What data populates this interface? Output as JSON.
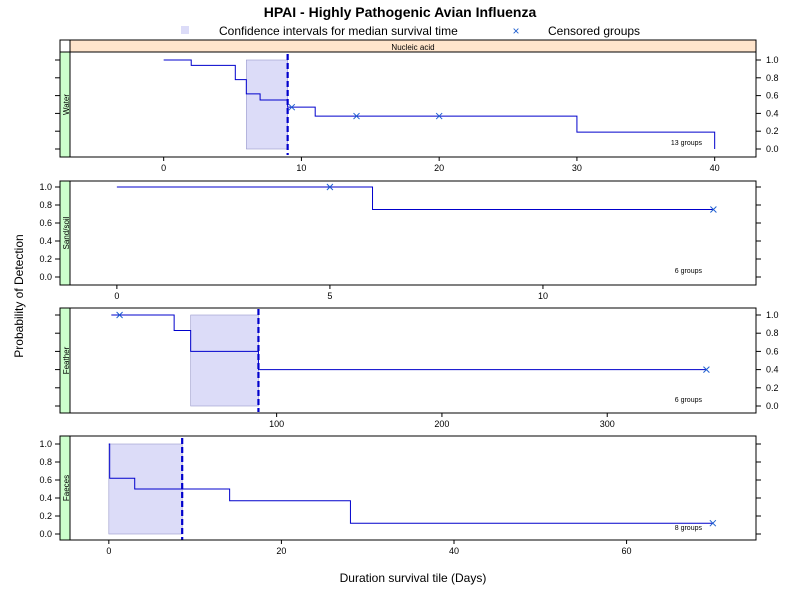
{
  "title": "HPAI - Highly Pathogenic Avian Influenza",
  "colors": {
    "line": "#0000cc",
    "ci_fill": "#dcdcf8",
    "median_line": "#0000cc",
    "censor": "#2060d0",
    "top_strip": "#ffe5cc",
    "left_strip": "#ccffcc"
  },
  "chart_data": {
    "type": "line",
    "title": "HPAI - Highly Pathogenic Avian Influenza",
    "xlabel": "Duration survival tile (Days)",
    "ylabel": "Probability of Detection",
    "top_strip": "Nucleic acid",
    "legend": {
      "position": "top",
      "entries": [
        {
          "label": "Confidence intervals for median survival time",
          "symbol": "square"
        },
        {
          "label": "Censored groups",
          "symbol": "x"
        }
      ]
    },
    "panels": [
      {
        "name": "Water",
        "groups_label": "13 groups",
        "xlim": [
          -6.8,
          43
        ],
        "ylim": [
          0,
          1
        ],
        "x_ticks": [
          0,
          10,
          20,
          30,
          40
        ],
        "y_ticks": [
          0.0,
          0.2,
          0.4,
          0.6,
          0.8,
          1.0
        ],
        "y_side": "right",
        "step": [
          [
            0,
            1.0
          ],
          [
            2,
            0.94
          ],
          [
            5.2,
            0.78
          ],
          [
            6,
            0.62
          ],
          [
            7,
            0.55
          ],
          [
            9,
            0.47
          ],
          [
            11,
            0.37
          ],
          [
            30,
            0.19
          ],
          [
            40,
            0.0
          ]
        ],
        "censored": [
          [
            9.3,
            0.47
          ],
          [
            14,
            0.37
          ],
          [
            20,
            0.37
          ]
        ],
        "ci": [
          6,
          9
        ],
        "median": 9
      },
      {
        "name": "Sand/soil",
        "groups_label": "6 groups",
        "xlim": [
          -1.1,
          15
        ],
        "ylim": [
          0,
          1
        ],
        "x_ticks": [
          0,
          5,
          10
        ],
        "y_ticks": [
          0.0,
          0.2,
          0.4,
          0.6,
          0.8,
          1.0
        ],
        "y_side": "left",
        "step": [
          [
            0,
            1.0
          ],
          [
            6,
            0.75
          ],
          [
            14,
            0.75
          ]
        ],
        "censored": [
          [
            5,
            1.0
          ],
          [
            14,
            0.75
          ]
        ],
        "ci": null,
        "median": null
      },
      {
        "name": "Feather",
        "groups_label": "6 groups",
        "xlim": [
          -25,
          390
        ],
        "ylim": [
          0,
          1
        ],
        "x_ticks": [
          100,
          200,
          300
        ],
        "y_ticks": [
          0.0,
          0.2,
          0.4,
          0.6,
          0.8,
          1.0
        ],
        "y_side": "right",
        "step": [
          [
            0,
            1.0
          ],
          [
            38,
            0.83
          ],
          [
            48,
            0.6
          ],
          [
            89,
            0.4
          ],
          [
            360,
            0.4
          ]
        ],
        "censored": [
          [
            5,
            1.0
          ],
          [
            360,
            0.4
          ]
        ],
        "ci": [
          48,
          89
        ],
        "median": 89
      },
      {
        "name": "Faeces",
        "groups_label": "8 groups",
        "xlim": [
          -4.5,
          75
        ],
        "ylim": [
          0,
          1
        ],
        "x_ticks": [
          0,
          20,
          40,
          60
        ],
        "y_ticks": [
          0.0,
          0.2,
          0.4,
          0.6,
          0.8,
          1.0
        ],
        "y_side": "left",
        "step": [
          [
            0,
            1.0
          ],
          [
            0.1,
            0.62
          ],
          [
            3,
            0.5
          ],
          [
            14,
            0.37
          ],
          [
            28,
            0.12
          ],
          [
            70,
            0.12
          ]
        ],
        "censored": [
          [
            70,
            0.12
          ]
        ],
        "ci": [
          0,
          8.5
        ],
        "median": 8.5
      }
    ]
  }
}
